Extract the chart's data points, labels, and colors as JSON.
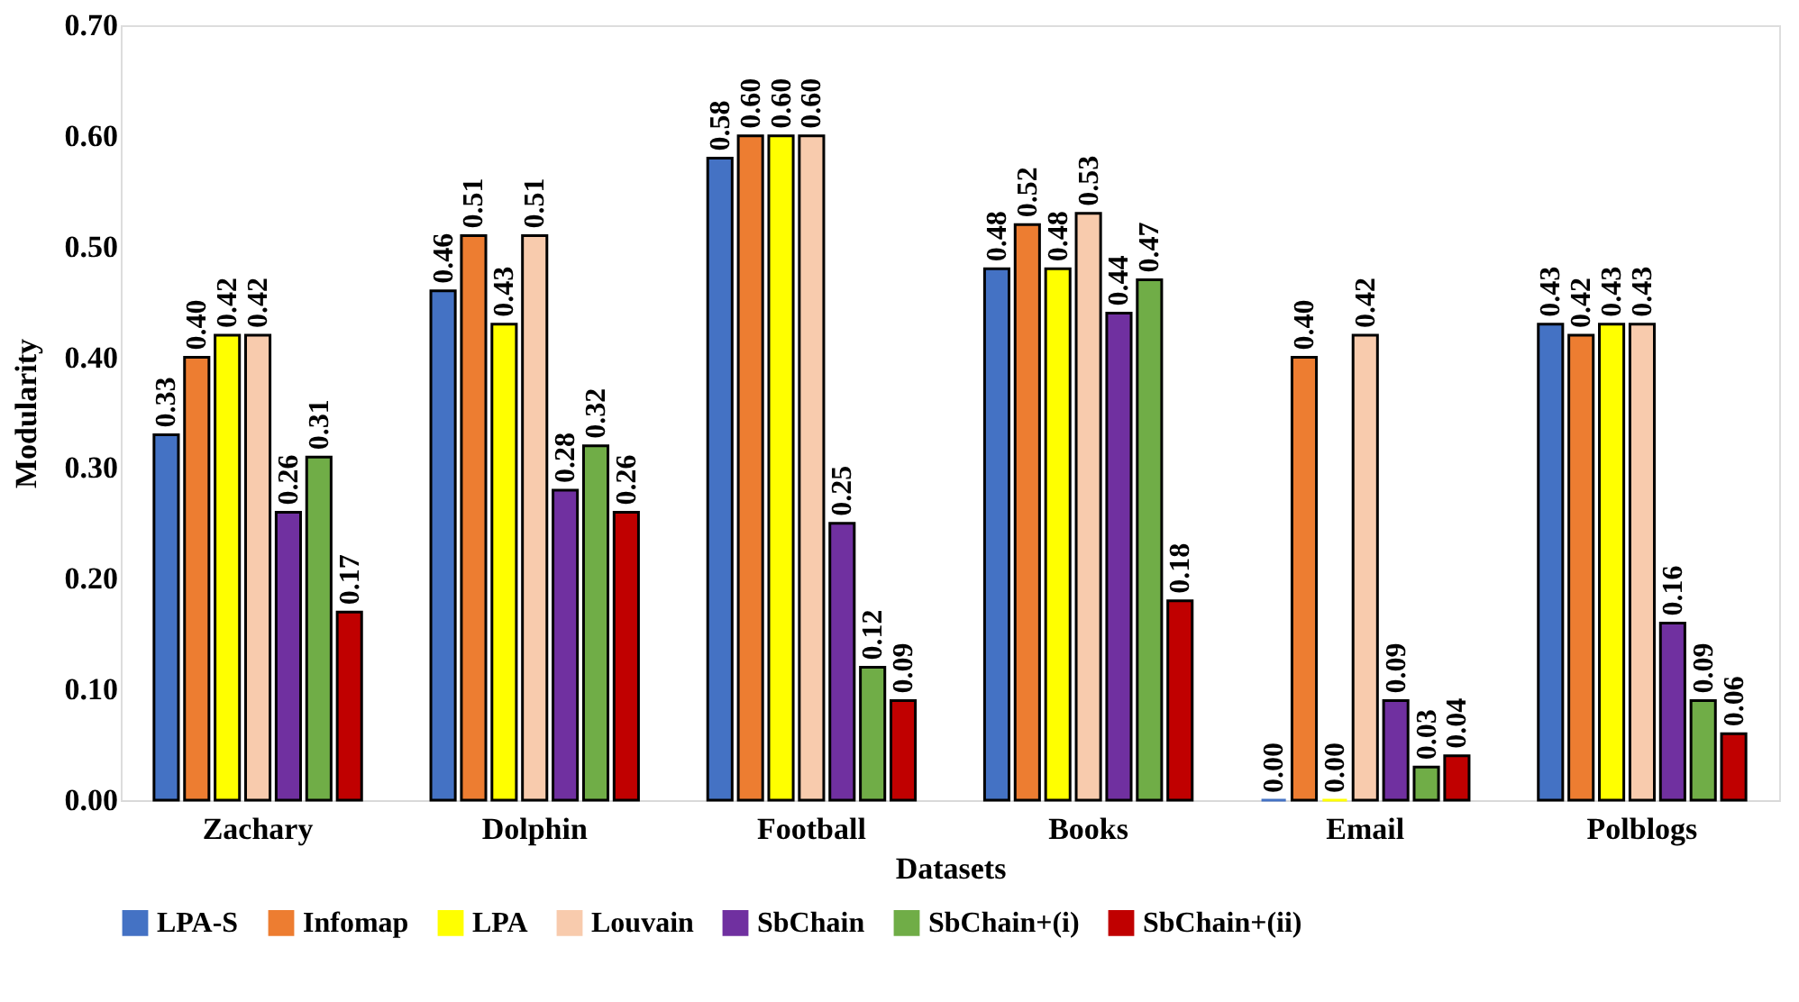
{
  "chart_data": {
    "type": "bar",
    "xlabel": "Datasets",
    "ylabel": "Modularity",
    "categories": [
      "Zachary",
      "Dolphin",
      "Football",
      "Books",
      "Email",
      "Polblogs"
    ],
    "series": [
      {
        "name": "LPA-S",
        "color": "#4472c4",
        "values": [
          0.33,
          0.46,
          0.58,
          0.48,
          0.0,
          0.43
        ],
        "value_labels": [
          "0.33",
          "0.46",
          "0.58",
          "0.48",
          "0.00",
          "0.43"
        ]
      },
      {
        "name": "Infomap",
        "color": "#ed7d31",
        "values": [
          0.4,
          0.51,
          0.6,
          0.52,
          0.4,
          0.42
        ],
        "value_labels": [
          "0.40",
          "0.51",
          "0.60",
          "0.52",
          "0.40",
          "0.42"
        ]
      },
      {
        "name": "LPA",
        "color": "#ffff00",
        "values": [
          0.42,
          0.43,
          0.6,
          0.48,
          0.0,
          0.43
        ],
        "value_labels": [
          "0.42",
          "0.43",
          "0.60",
          "0.48",
          "0.00",
          "0.43"
        ]
      },
      {
        "name": "Louvain",
        "color": "#f8cbad",
        "values": [
          0.42,
          0.51,
          0.6,
          0.53,
          0.42,
          0.43
        ],
        "value_labels": [
          "0.42",
          "0.51",
          "0.60",
          "0.53",
          "0.42",
          "0.43"
        ]
      },
      {
        "name": "SbChain",
        "color": "#7030a0",
        "values": [
          0.26,
          0.28,
          0.25,
          0.44,
          0.09,
          0.16
        ],
        "value_labels": [
          "0.26",
          "0.28",
          "0.25",
          "0.44",
          "0.09",
          "0.16"
        ]
      },
      {
        "name": "SbChain+(i)",
        "color": "#70ad47",
        "values": [
          0.31,
          0.32,
          0.12,
          0.47,
          0.03,
          0.09
        ],
        "value_labels": [
          "0.31",
          "0.32",
          "0.12",
          "0.47",
          "0.03",
          "0.09"
        ]
      },
      {
        "name": "SbChain+(ii)",
        "color": "#c00000",
        "values": [
          0.17,
          0.26,
          0.09,
          0.18,
          0.04,
          0.06
        ],
        "value_labels": [
          "0.17",
          "0.26",
          "0.09",
          "0.18",
          "0.04",
          "0.06"
        ]
      }
    ],
    "ylim": [
      0,
      0.7
    ],
    "yticks": [
      {
        "value": 0,
        "label": "0.00"
      },
      {
        "value": 0.1,
        "label": "0.10"
      },
      {
        "value": 0.2,
        "label": "0.20"
      },
      {
        "value": 0.3,
        "label": "0.30"
      },
      {
        "value": 0.4,
        "label": "0.40"
      },
      {
        "value": 0.5,
        "label": "0.50"
      },
      {
        "value": 0.6,
        "label": "0.60"
      },
      {
        "value": 0.7,
        "label": "0.70"
      }
    ],
    "grid": false,
    "legend": "bottom"
  }
}
